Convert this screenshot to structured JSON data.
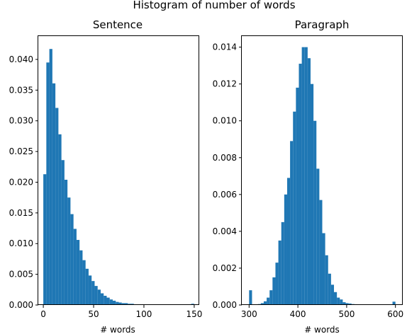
{
  "figure": {
    "suptitle": "Histogram of number of words"
  },
  "chart_data": [
    {
      "type": "bar",
      "title": "Sentence",
      "xlabel": "# words",
      "ylabel": "",
      "xlim": [
        -5,
        155
      ],
      "ylim": [
        0,
        0.0438
      ],
      "xticks": [
        "0",
        "50",
        "100",
        "150"
      ],
      "yticks": [
        "0.000",
        "0.005",
        "0.010",
        "0.015",
        "0.020",
        "0.025",
        "0.030",
        "0.035",
        "0.040"
      ],
      "bar_color": "#1f77b4",
      "bin_width": 3,
      "bin_starts": [
        0,
        3,
        6,
        9,
        12,
        15,
        18,
        21,
        24,
        27,
        30,
        33,
        36,
        39,
        42,
        45,
        48,
        51,
        54,
        57,
        60,
        63,
        66,
        69,
        72,
        75,
        78,
        81,
        84,
        87,
        90,
        93,
        96,
        99,
        102,
        105,
        108,
        111,
        114,
        117,
        120,
        123,
        126,
        129,
        132,
        135,
        138,
        141,
        144,
        147
      ],
      "values": [
        0.0213,
        0.0395,
        0.0417,
        0.0361,
        0.0321,
        0.0278,
        0.0236,
        0.0204,
        0.0175,
        0.0148,
        0.0124,
        0.0106,
        0.0089,
        0.0073,
        0.0059,
        0.0048,
        0.0039,
        0.0031,
        0.0025,
        0.0019,
        0.0015,
        0.0012,
        0.0009,
        0.0007,
        0.0005,
        0.0004,
        0.0003,
        0.0003,
        0.0002,
        0.0002,
        0.0001,
        0.0001,
        0.0001,
        0.0001,
        0.0001,
        0.0001,
        0.0001,
        5e-05,
        5e-05,
        5e-05,
        4e-05,
        3e-05,
        3e-05,
        2e-05,
        2e-05,
        2e-05,
        2e-05,
        1e-05,
        1e-05,
        0.0002
      ]
    },
    {
      "type": "bar",
      "title": "Paragraph",
      "xlabel": "# words",
      "ylabel": "",
      "xlim": [
        285,
        615
      ],
      "ylim": [
        0,
        0.0146
      ],
      "xticks": [
        "300",
        "400",
        "500",
        "600"
      ],
      "yticks": [
        "0.000",
        "0.002",
        "0.004",
        "0.006",
        "0.008",
        "0.010",
        "0.012",
        "0.014"
      ],
      "bar_color": "#1f77b4",
      "bin_width": 6,
      "bin_starts": [
        300,
        306,
        312,
        318,
        324,
        330,
        336,
        342,
        348,
        354,
        360,
        366,
        372,
        378,
        384,
        390,
        396,
        402,
        408,
        414,
        420,
        426,
        432,
        438,
        444,
        450,
        456,
        462,
        468,
        474,
        480,
        486,
        492,
        498,
        504,
        510,
        516,
        522,
        528,
        534,
        540,
        546,
        552,
        558,
        564,
        570,
        576,
        582,
        588,
        594
      ],
      "values": [
        0.0008,
        0.0,
        3e-05,
        5e-05,
        0.0001,
        0.0002,
        0.0004,
        0.0008,
        0.0015,
        0.0023,
        0.0035,
        0.0045,
        0.006,
        0.0069,
        0.0089,
        0.0105,
        0.0118,
        0.0131,
        0.014,
        0.014,
        0.0134,
        0.012,
        0.01,
        0.0074,
        0.0057,
        0.0039,
        0.0027,
        0.0017,
        0.0011,
        0.0007,
        0.0004,
        0.0003,
        0.00015,
        0.0001,
        8e-05,
        5e-05,
        4e-05,
        3e-05,
        2e-05,
        2e-05,
        1e-05,
        1e-05,
        1e-05,
        1e-05,
        1e-05,
        1e-05,
        1e-05,
        1e-05,
        1e-05,
        0.00018
      ]
    }
  ]
}
